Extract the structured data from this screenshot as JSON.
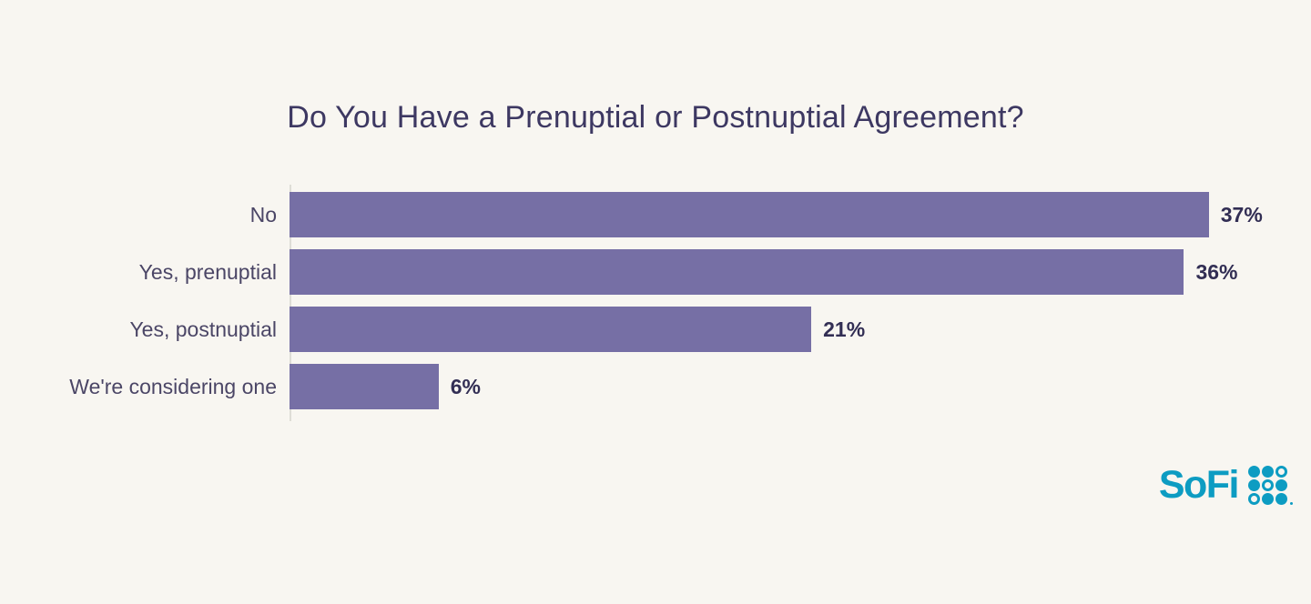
{
  "background_color": "#f8f6f1",
  "chart_data": {
    "type": "bar",
    "orientation": "horizontal",
    "title": "Do You Have a Prenuptial or Postnuptial Agreement?",
    "categories": [
      "No",
      "Yes, prenuptial",
      "Yes, postnuptial",
      "We're considering one"
    ],
    "values": [
      37,
      36,
      21,
      6
    ],
    "value_labels": [
      "37%",
      "36%",
      "21%",
      "6%"
    ],
    "xlabel": "",
    "ylabel": "",
    "xlim": [
      0,
      39.5
    ],
    "grid": false,
    "legend": false,
    "bar_color": "#766fa5",
    "title_color": "#3d3862",
    "category_label_color": "#4b4666",
    "value_label_color": "#322e54",
    "axis_line_color": "#deddd6"
  },
  "logo": {
    "text": "SoFi",
    "color": "#0d9cc2"
  }
}
